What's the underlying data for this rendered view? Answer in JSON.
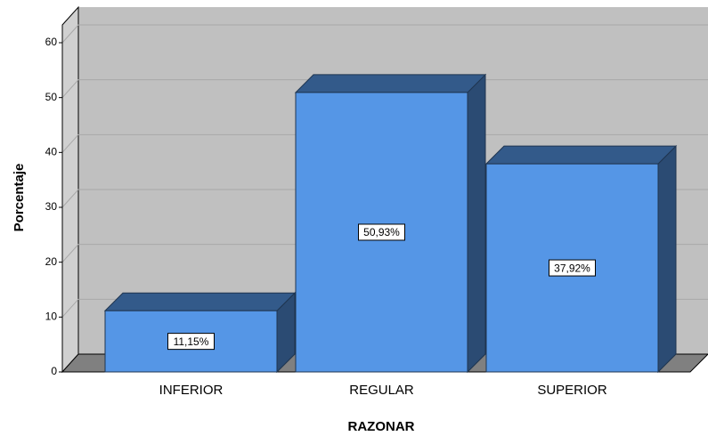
{
  "chart_data": {
    "type": "bar",
    "x_label": "RAZONAR",
    "y_label": "Porcentaje",
    "categories": [
      "INFERIOR",
      "REGULAR",
      "SUPERIOR"
    ],
    "values": [
      11.15,
      50.93,
      37.92
    ],
    "value_labels": [
      "11,15%",
      "50,93%",
      "37,92%"
    ],
    "color": "#5596e6",
    "ylim": [
      0,
      60
    ],
    "yticks": [
      0,
      10,
      20,
      30,
      40,
      50,
      60
    ],
    "grid": true
  }
}
